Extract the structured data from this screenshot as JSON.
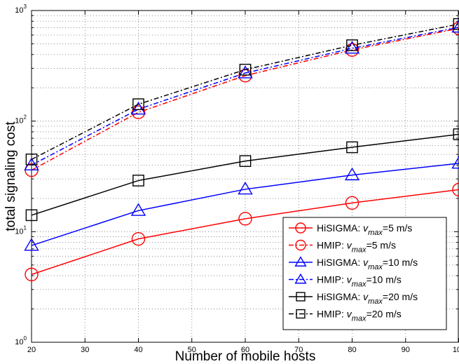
{
  "chart_data": {
    "type": "line",
    "xlabel": "Number of mobile hosts",
    "ylabel": "total signaling cost",
    "yscale": "log",
    "xlim": [
      20,
      100
    ],
    "ylim": [
      1,
      1000
    ],
    "grid": true,
    "legend_position": "bottom-right",
    "x_ticks": [
      "20",
      "30",
      "40",
      "50",
      "60",
      "70",
      "80",
      "90",
      "100"
    ],
    "y_ticks": [
      {
        "base": "10",
        "exp": "0"
      },
      {
        "base": "10",
        "exp": "1"
      },
      {
        "base": "10",
        "exp": "2"
      },
      {
        "base": "10",
        "exp": "3"
      }
    ],
    "x": [
      20,
      40,
      60,
      80,
      100
    ],
    "series": [
      {
        "name": "HiSIGMA: v_max=5 m/s",
        "legend_prefix": "HiSIGMA: ",
        "legend_var": "v",
        "legend_sub": "max",
        "legend_suffix": "=5 m/s",
        "values": [
          4.1,
          8.6,
          13.1,
          18.2,
          24.0
        ],
        "color": "#ff0000",
        "marker": "circle",
        "dash": "solid"
      },
      {
        "name": "HMIP: v_max=5 m/s",
        "legend_prefix": "HMIP: ",
        "legend_var": "v",
        "legend_sub": "max",
        "legend_suffix": "=5 m/s",
        "values": [
          36,
          120,
          258,
          440,
          690
        ],
        "color": "#ff0000",
        "marker": "circle",
        "dash": "dashdot"
      },
      {
        "name": "HiSIGMA: v_max=10 m/s",
        "legend_prefix": "HiSIGMA: ",
        "legend_var": "v",
        "legend_sub": "max",
        "legend_suffix": "=10 m/s",
        "values": [
          7.5,
          15.5,
          24.2,
          32.5,
          41.5
        ],
        "color": "#0000ff",
        "marker": "triangle",
        "dash": "solid"
      },
      {
        "name": "HMIP: v_max=10 m/s",
        "legend_prefix": "HMIP: ",
        "legend_var": "v",
        "legend_sub": "max",
        "legend_suffix": "=10 m/s",
        "values": [
          40,
          128,
          272,
          455,
          705
        ],
        "color": "#0000ff",
        "marker": "triangle",
        "dash": "dashdot"
      },
      {
        "name": "HiSIGMA: v_max=20 m/s",
        "legend_prefix": "HiSIGMA: ",
        "legend_var": "v",
        "legend_sub": "max",
        "legend_suffix": "=20 m/s",
        "values": [
          14.1,
          29.0,
          43.5,
          58.0,
          76.0
        ],
        "color": "#000000",
        "marker": "square",
        "dash": "solid"
      },
      {
        "name": "HMIP: v_max=20 m/s",
        "legend_prefix": "HMIP: ",
        "legend_var": "v",
        "legend_sub": "max",
        "legend_suffix": "=20 m/s",
        "values": [
          45,
          142,
          292,
          485,
          755
        ],
        "color": "#000000",
        "marker": "square",
        "dash": "dashdot"
      }
    ]
  }
}
